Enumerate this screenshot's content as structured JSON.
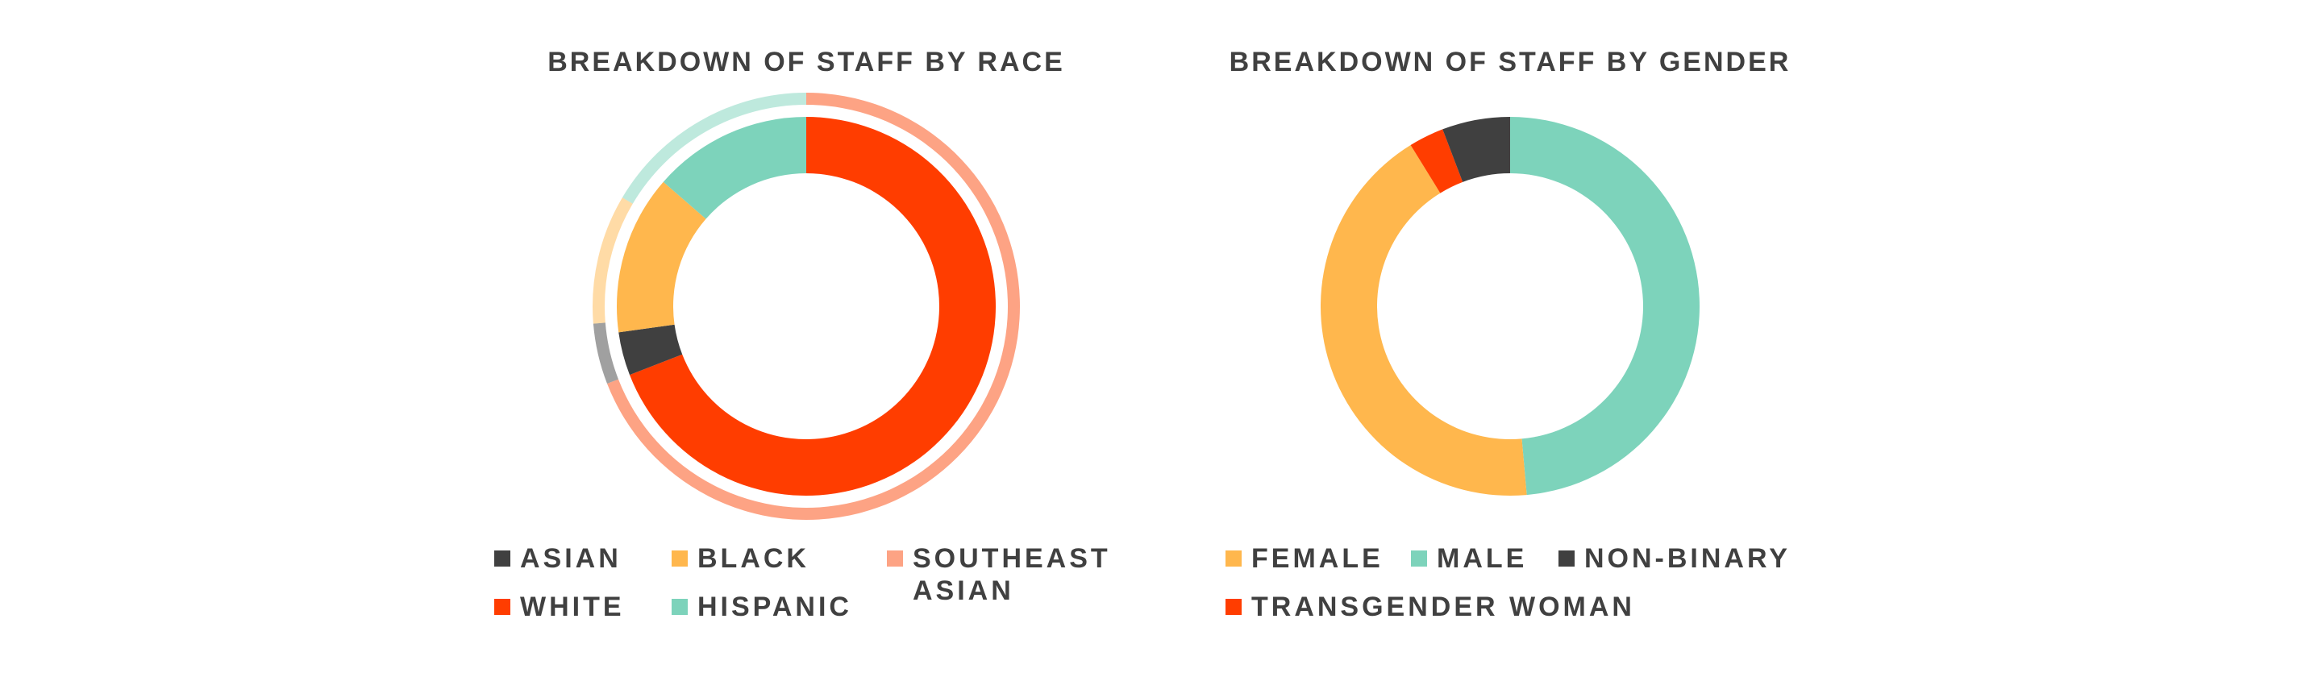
{
  "colors": {
    "asian": "#404040",
    "black": "#ffb74d",
    "southeast_asian": "#fda384",
    "white": "#ff3d00",
    "hispanic": "#7dd3bb",
    "female": "#ffb74d",
    "male": "#7dd3bb",
    "non_binary": "#404040",
    "transgender_woman": "#ff3d00"
  },
  "chart_data": [
    {
      "type": "pie",
      "title": "BREAKDOWN OF STAFF BY RACE",
      "series": [
        {
          "categories": [
            "WHITE",
            "ASIAN",
            "BLACK",
            "HISPANIC"
          ],
          "values": [
            69.1,
            3.7,
            13.6,
            13.6
          ]
        },
        {
          "categories": [
            "SOUTHEAST ASIAN",
            "ASIAN",
            "BLACK",
            "HISPANIC"
          ],
          "values": [
            69.1,
            4.6,
            9.8,
            16.5
          ]
        }
      ],
      "legend": [
        "ASIAN",
        "BLACK",
        "SOUTHEAST ASIAN",
        "WHITE",
        "HISPANIC"
      ],
      "legend_position": "bottom"
    },
    {
      "type": "pie",
      "title": "BREAKDOWN OF STAFF BY GENDER",
      "categories": [
        "MALE",
        "FEMALE",
        "TRANSGENDER WOMAN",
        "NON-BINARY"
      ],
      "values": [
        48.6,
        42.6,
        3.0,
        5.8
      ],
      "legend": [
        "FEMALE",
        "MALE",
        "NON-BINARY",
        "TRANSGENDER WOMAN"
      ],
      "legend_position": "bottom"
    }
  ]
}
